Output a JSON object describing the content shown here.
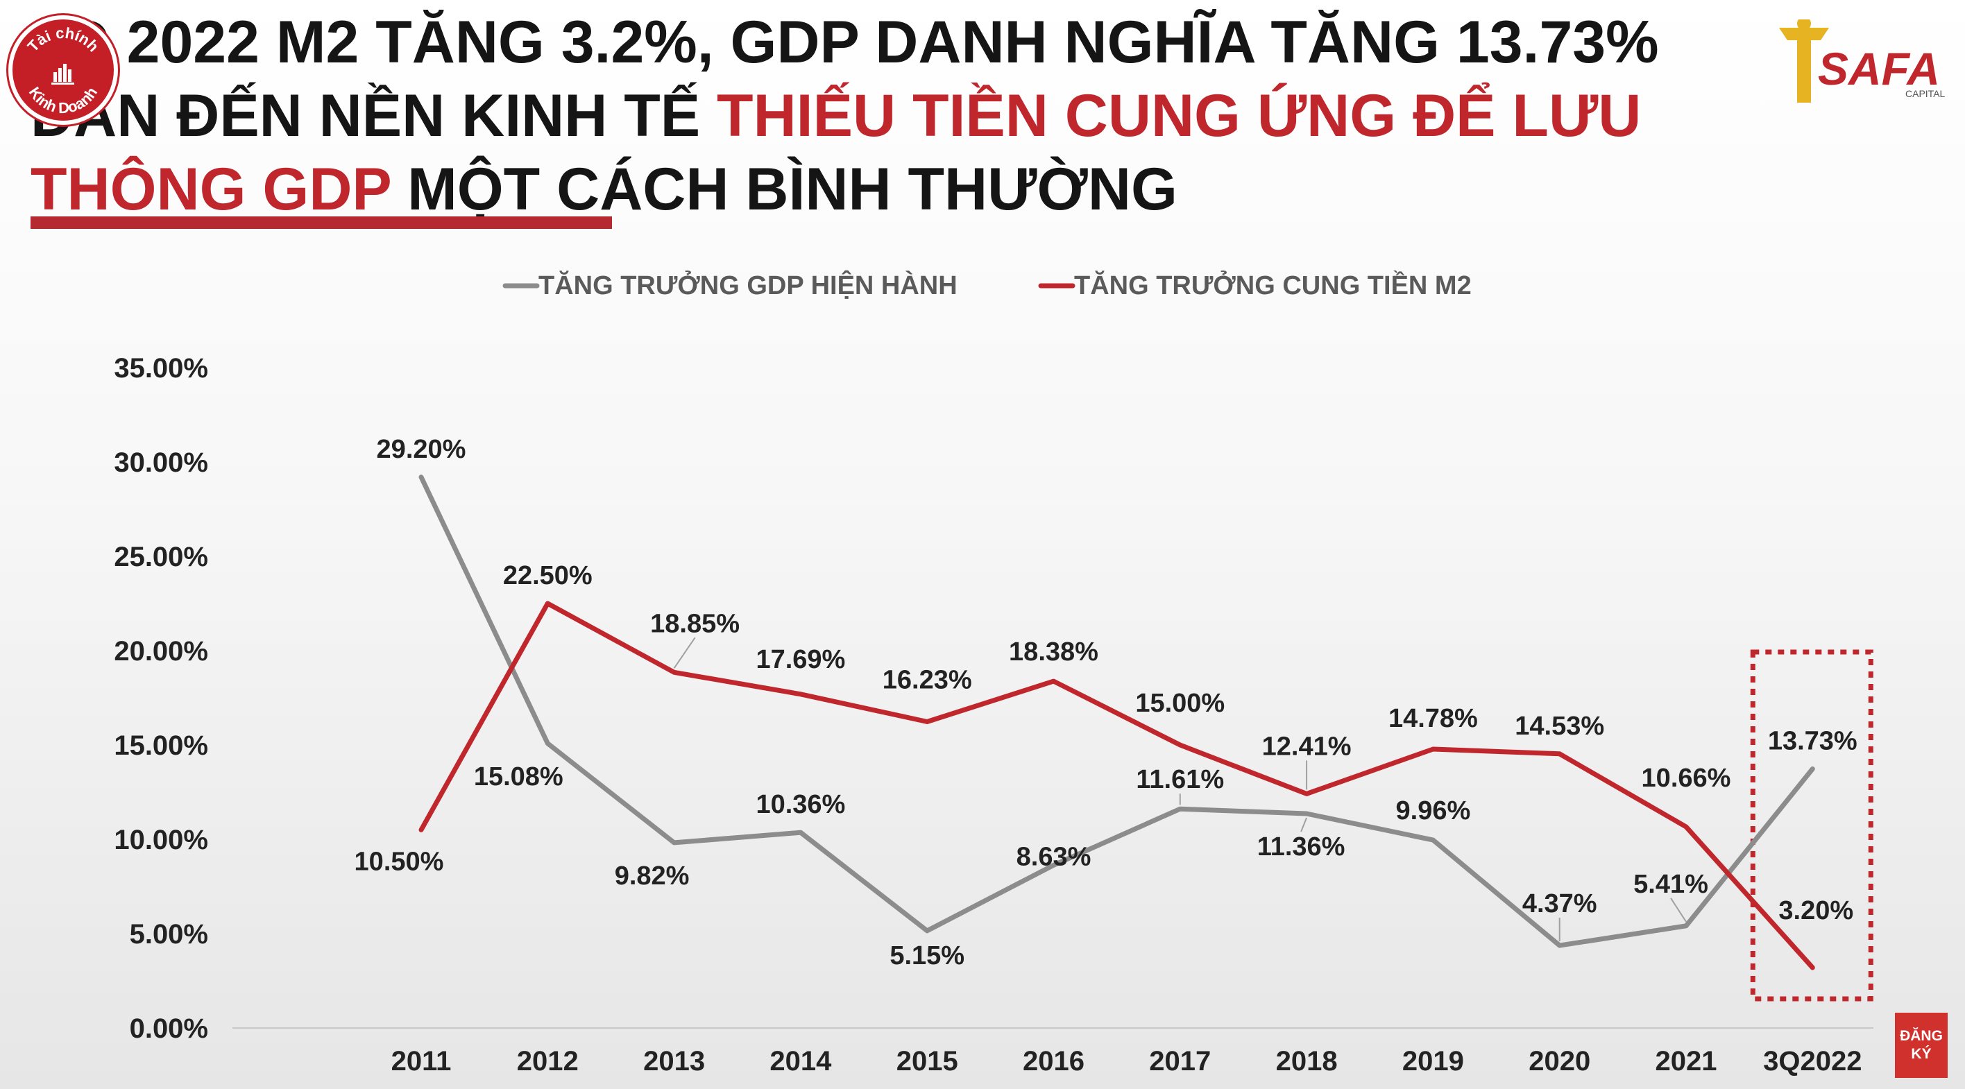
{
  "title": {
    "line1": "3Q 2022 M2 TĂNG 3.2%, GDP DANH NGHĨA TĂNG 13.73%",
    "line2_black": "DẪN ĐẾN NỀN KINH TẾ ",
    "line2_red": "THIẾU TIỀN CUNG ỨNG ĐỂ LƯU",
    "line3_red": "THÔNG GDP",
    "line3_black": " MỘT CÁCH BÌNH THƯỜNG"
  },
  "channel_logo": {
    "line1": "Tài chính",
    "line2": "Kinh Doanh"
  },
  "brand_logo": {
    "name": "SAFA",
    "sub": "CAPITAL"
  },
  "subscribe": {
    "line1": "ĐĂNG",
    "line2": "KÝ"
  },
  "colors": {
    "gdp": "#8c8c8c",
    "m2": "#c0272d",
    "highlight": "#c0272d",
    "text": "#222222"
  },
  "chart_data": {
    "type": "line",
    "categories": [
      "2011",
      "2012",
      "2013",
      "2014",
      "2015",
      "2016",
      "2017",
      "2018",
      "2019",
      "2020",
      "2021",
      "3Q2022"
    ],
    "series": [
      {
        "name": "TĂNG TRƯỞNG GDP HIỆN HÀNH",
        "color": "#8c8c8c",
        "values": [
          29.2,
          15.08,
          9.82,
          10.36,
          5.15,
          8.63,
          11.61,
          11.36,
          9.96,
          4.37,
          5.41,
          13.73
        ],
        "labels": [
          "29.20%",
          "15.08%",
          "9.82%",
          "10.36%",
          "5.15%",
          "8.63%",
          "11.61%",
          "11.36%",
          "9.96%",
          "4.37%",
          "5.41%",
          "13.73%"
        ]
      },
      {
        "name": "TĂNG TRƯỞNG CUNG TIỀN M2",
        "color": "#c0272d",
        "values": [
          10.5,
          22.5,
          18.85,
          17.69,
          16.23,
          18.38,
          15.0,
          12.41,
          14.78,
          14.53,
          10.66,
          3.2
        ],
        "labels": [
          "10.50%",
          "22.50%",
          "18.85%",
          "17.69%",
          "16.23%",
          "18.38%",
          "15.00%",
          "12.41%",
          "14.78%",
          "14.53%",
          "10.66%",
          "3.20%"
        ]
      }
    ],
    "yticks": [
      "0.00%",
      "5.00%",
      "10.00%",
      "15.00%",
      "20.00%",
      "25.00%",
      "30.00%",
      "35.00%"
    ],
    "ylim": [
      0,
      35
    ],
    "legend_position": "top-center",
    "grid": false,
    "highlight_category": "3Q2022"
  }
}
